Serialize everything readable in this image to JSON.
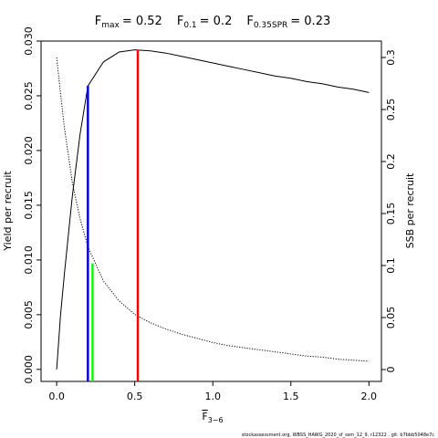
{
  "chart_data": {
    "type": "line",
    "title": [
      {
        "symbol": "F",
        "sub": "max",
        "text": "= 0.52"
      },
      {
        "symbol": "F",
        "sub": "0.1",
        "text": "= 0.2"
      },
      {
        "symbol": "F",
        "sub": "0.35SPR",
        "text": "= 0.23"
      }
    ],
    "xlabel": {
      "symbol": "F",
      "overline": true,
      "sub": "3−6"
    },
    "ylabel": "Yield per recruit",
    "y2label": "SSB per recruit",
    "footer": "stockassessment.org, WBSS_HAWG_2020_sf_ssm_12_9, r12322 , git: b7bbb5048e7c",
    "x": [
      0,
      0.025,
      0.05,
      0.1,
      0.15,
      0.2,
      0.3,
      0.4,
      0.5,
      0.6,
      0.7,
      0.8,
      0.9,
      1.0,
      1.1,
      1.2,
      1.3,
      1.4,
      1.5,
      1.6,
      1.7,
      1.8,
      1.9,
      2.0
    ],
    "series": [
      {
        "color": "#000000",
        "dash": "none",
        "values": [
          0,
          0.005,
          0.0088,
          0.0158,
          0.0215,
          0.0259,
          0.0281,
          0.029,
          0.0292,
          0.0291,
          0.0289,
          0.0286,
          0.0283,
          0.028,
          0.0277,
          0.0274,
          0.0271,
          0.0268,
          0.0266,
          0.0263,
          0.0261,
          0.0258,
          0.0256,
          0.0253
        ]
      },
      {
        "color": "#000000",
        "dash": "1.2 1.6",
        "axis": "y2",
        "values": [
          0.3,
          0.265,
          0.232,
          0.18,
          0.145,
          0.118,
          0.085,
          0.066,
          0.053,
          0.045,
          0.039,
          0.034,
          0.03,
          0.026,
          0.023,
          0.021,
          0.019,
          0.017,
          0.015,
          0.013,
          0.012,
          0.01,
          0.009,
          0.008
        ]
      }
    ],
    "reference_lines": [
      {
        "x": 0.52,
        "y": 0.0292,
        "color": "#ff0000"
      },
      {
        "x": 0.2,
        "y": 0.0259,
        "color": "#0000ff"
      },
      {
        "x": 0.23,
        "y": 0.102,
        "color": "#00ff00",
        "axis": "y2"
      }
    ],
    "xlim": [
      -0.1,
      2.08
    ],
    "ylim": [
      -0.0011,
      0.03
    ],
    "y2lim": [
      -0.0114,
      0.3158
    ],
    "xticks": [
      {
        "value": 0,
        "label": "0.0"
      },
      {
        "value": 0.5,
        "label": "0.5"
      },
      {
        "value": 1,
        "label": "1.0"
      },
      {
        "value": 1.5,
        "label": "1.5"
      },
      {
        "value": 2,
        "label": "2.0"
      }
    ],
    "yticks": [
      {
        "value": 0,
        "label": "0.000"
      },
      {
        "value": 0.005,
        "label": "0.005"
      },
      {
        "value": 0.01,
        "label": "0.010"
      },
      {
        "value": 0.015,
        "label": "0.015"
      },
      {
        "value": 0.02,
        "label": "0.020"
      },
      {
        "value": 0.025,
        "label": "0.025"
      },
      {
        "value": 0.03,
        "label": "0.030"
      }
    ],
    "y2ticks": [
      0,
      0.05,
      0.1,
      0.15,
      0.2,
      0.25,
      0.3
    ]
  }
}
